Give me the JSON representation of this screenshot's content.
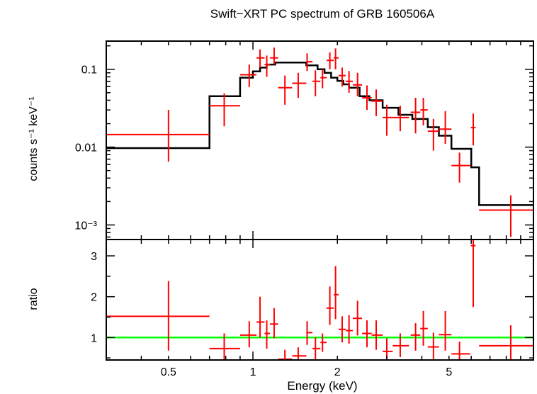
{
  "chart_data": {
    "type": "scatter",
    "title": "Swift−XRT PC spectrum of GRB 160506A",
    "xlabel": "Energy (keV)",
    "x_scale": "log",
    "xlim": [
      0.3,
      10
    ],
    "x_ticks": [
      {
        "value": 0.5,
        "label": "0.5"
      },
      {
        "value": 1,
        "label": "1"
      },
      {
        "value": 2,
        "label": "2"
      },
      {
        "value": 5,
        "label": "5"
      }
    ],
    "colors": {
      "data": "#ff0000",
      "model": "#000000",
      "unity": "#00ff00"
    },
    "panels": [
      {
        "name": "spectrum",
        "ylabel": "counts s⁻¹ keV⁻¹",
        "y_scale": "log",
        "ylim": [
          0.00065,
          0.23
        ],
        "y_ticks": [
          {
            "value": 0.1,
            "label": "0.1"
          },
          {
            "value": 0.01,
            "label": "0.01"
          },
          {
            "value": 0.001,
            "label": "10⁻³"
          }
        ],
        "data": [
          {
            "x": 0.5,
            "xlo": 0.3,
            "xhi": 0.7,
            "y": 0.0145,
            "ylo": 0.0065,
            "yhi": 0.03
          },
          {
            "x": 0.79,
            "xlo": 0.7,
            "xhi": 0.9,
            "y": 0.034,
            "ylo": 0.0185,
            "yhi": 0.049
          },
          {
            "x": 0.97,
            "xlo": 0.9,
            "xhi": 1.03,
            "y": 0.085,
            "ylo": 0.059,
            "yhi": 0.115
          },
          {
            "x": 1.06,
            "xlo": 1.03,
            "xhi": 1.1,
            "y": 0.14,
            "ylo": 0.105,
            "yhi": 0.18
          },
          {
            "x": 1.12,
            "xlo": 1.1,
            "xhi": 1.15,
            "y": 0.115,
            "ylo": 0.08,
            "yhi": 0.15
          },
          {
            "x": 1.19,
            "xlo": 1.15,
            "xhi": 1.23,
            "y": 0.14,
            "ylo": 0.115,
            "yhi": 0.19
          },
          {
            "x": 1.3,
            "xlo": 1.23,
            "xhi": 1.38,
            "y": 0.058,
            "ylo": 0.035,
            "yhi": 0.083
          },
          {
            "x": 1.45,
            "xlo": 1.38,
            "xhi": 1.55,
            "y": 0.066,
            "ylo": 0.043,
            "yhi": 0.09
          },
          {
            "x": 1.56,
            "xlo": 1.55,
            "xhi": 1.63,
            "y": 0.125,
            "ylo": 0.095,
            "yhi": 0.16
          },
          {
            "x": 1.67,
            "xlo": 1.63,
            "xhi": 1.74,
            "y": 0.07,
            "ylo": 0.045,
            "yhi": 0.097
          },
          {
            "x": 1.77,
            "xlo": 1.74,
            "xhi": 1.83,
            "y": 0.078,
            "ylo": 0.057,
            "yhi": 0.1
          },
          {
            "x": 1.88,
            "xlo": 1.83,
            "xhi": 1.94,
            "y": 0.13,
            "ylo": 0.1,
            "yhi": 0.165
          },
          {
            "x": 1.97,
            "xlo": 1.94,
            "xhi": 2.02,
            "y": 0.14,
            "ylo": 0.1,
            "yhi": 0.185
          },
          {
            "x": 2.08,
            "xlo": 2.02,
            "xhi": 2.14,
            "y": 0.083,
            "ylo": 0.06,
            "yhi": 0.105
          },
          {
            "x": 2.2,
            "xlo": 2.14,
            "xhi": 2.27,
            "y": 0.07,
            "ylo": 0.05,
            "yhi": 0.095
          },
          {
            "x": 2.36,
            "xlo": 2.27,
            "xhi": 2.45,
            "y": 0.063,
            "ylo": 0.045,
            "yhi": 0.09
          },
          {
            "x": 2.55,
            "xlo": 2.45,
            "xhi": 2.65,
            "y": 0.043,
            "ylo": 0.03,
            "yhi": 0.062
          },
          {
            "x": 2.75,
            "xlo": 2.65,
            "xhi": 2.9,
            "y": 0.039,
            "ylo": 0.025,
            "yhi": 0.055
          },
          {
            "x": 3.0,
            "xlo": 2.9,
            "xhi": 3.15,
            "y": 0.024,
            "ylo": 0.014,
            "yhi": 0.035
          },
          {
            "x": 3.35,
            "xlo": 3.15,
            "xhi": 3.6,
            "y": 0.024,
            "ylo": 0.016,
            "yhi": 0.034
          },
          {
            "x": 3.8,
            "xlo": 3.65,
            "xhi": 3.95,
            "y": 0.028,
            "ylo": 0.015,
            "yhi": 0.043
          },
          {
            "x": 4.05,
            "xlo": 3.95,
            "xhi": 4.2,
            "y": 0.03,
            "ylo": 0.019,
            "yhi": 0.043
          },
          {
            "x": 4.4,
            "xlo": 4.2,
            "xhi": 4.6,
            "y": 0.016,
            "ylo": 0.009,
            "yhi": 0.023
          },
          {
            "x": 4.85,
            "xlo": 4.6,
            "xhi": 5.1,
            "y": 0.017,
            "ylo": 0.011,
            "yhi": 0.029
          },
          {
            "x": 5.45,
            "xlo": 5.1,
            "xhi": 5.95,
            "y": 0.0058,
            "ylo": 0.0035,
            "yhi": 0.0085
          },
          {
            "x": 6.1,
            "xlo": 5.98,
            "xhi": 6.22,
            "y": 0.0178,
            "ylo": 0.0105,
            "yhi": 0.027
          },
          {
            "x": 8.3,
            "xlo": 6.4,
            "xhi": 10.0,
            "y": 0.00155,
            "ylo": 0.0007,
            "yhi": 0.0024
          }
        ],
        "model_steps": [
          {
            "xlo": 0.3,
            "xhi": 0.7,
            "y": 0.0097
          },
          {
            "xlo": 0.7,
            "xhi": 0.9,
            "y": 0.045
          },
          {
            "xlo": 0.9,
            "xhi": 1.0,
            "y": 0.078
          },
          {
            "xlo": 1.0,
            "xhi": 1.06,
            "y": 0.094
          },
          {
            "xlo": 1.06,
            "xhi": 1.12,
            "y": 0.105
          },
          {
            "xlo": 1.12,
            "xhi": 1.2,
            "y": 0.115
          },
          {
            "xlo": 1.2,
            "xhi": 1.55,
            "y": 0.122
          },
          {
            "xlo": 1.55,
            "xhi": 1.7,
            "y": 0.112
          },
          {
            "xlo": 1.7,
            "xhi": 1.8,
            "y": 0.1
          },
          {
            "xlo": 1.8,
            "xhi": 1.9,
            "y": 0.09
          },
          {
            "xlo": 1.9,
            "xhi": 2.0,
            "y": 0.078
          },
          {
            "xlo": 2.0,
            "xhi": 2.1,
            "y": 0.071
          },
          {
            "xlo": 2.1,
            "xhi": 2.2,
            "y": 0.064
          },
          {
            "xlo": 2.2,
            "xhi": 2.4,
            "y": 0.058
          },
          {
            "xlo": 2.4,
            "xhi": 2.6,
            "y": 0.045
          },
          {
            "xlo": 2.6,
            "xhi": 2.9,
            "y": 0.04
          },
          {
            "xlo": 2.9,
            "xhi": 3.3,
            "y": 0.032
          },
          {
            "xlo": 3.3,
            "xhi": 3.7,
            "y": 0.026
          },
          {
            "xlo": 3.7,
            "xhi": 4.2,
            "y": 0.023
          },
          {
            "xlo": 4.2,
            "xhi": 4.6,
            "y": 0.018
          },
          {
            "xlo": 4.6,
            "xhi": 5.1,
            "y": 0.014
          },
          {
            "xlo": 5.1,
            "xhi": 6.0,
            "y": 0.0095
          },
          {
            "xlo": 6.0,
            "xhi": 6.4,
            "y": 0.0055
          },
          {
            "xlo": 6.4,
            "xhi": 10.0,
            "y": 0.0018
          }
        ]
      },
      {
        "name": "ratio",
        "ylabel": "ratio",
        "y_scale": "linear",
        "ylim": [
          0.45,
          3.4
        ],
        "y_ticks": [
          {
            "value": 1,
            "label": "1"
          },
          {
            "value": 2,
            "label": "2"
          },
          {
            "value": 3,
            "label": "3"
          }
        ],
        "unity_line": 1,
        "data": [
          {
            "x": 0.5,
            "xlo": 0.3,
            "xhi": 0.7,
            "y": 1.52,
            "ylo": 0.68,
            "yhi": 2.38
          },
          {
            "x": 0.79,
            "xlo": 0.7,
            "xhi": 0.9,
            "y": 0.73,
            "ylo": 0.43,
            "yhi": 1.1
          },
          {
            "x": 0.97,
            "xlo": 0.9,
            "xhi": 1.03,
            "y": 1.06,
            "ylo": 0.76,
            "yhi": 1.4
          },
          {
            "x": 1.06,
            "xlo": 1.03,
            "xhi": 1.1,
            "y": 1.38,
            "ylo": 1.0,
            "yhi": 2.0
          },
          {
            "x": 1.12,
            "xlo": 1.1,
            "xhi": 1.15,
            "y": 1.1,
            "ylo": 0.73,
            "yhi": 1.42
          },
          {
            "x": 1.19,
            "xlo": 1.15,
            "xhi": 1.23,
            "y": 1.33,
            "ylo": 0.98,
            "yhi": 1.72
          },
          {
            "x": 1.3,
            "xlo": 1.23,
            "xhi": 1.38,
            "y": 0.47,
            "ylo": 0.43,
            "yhi": 0.7
          },
          {
            "x": 1.45,
            "xlo": 1.38,
            "xhi": 1.55,
            "y": 0.55,
            "ylo": 0.43,
            "yhi": 0.76
          },
          {
            "x": 1.56,
            "xlo": 1.55,
            "xhi": 1.63,
            "y": 1.12,
            "ylo": 0.82,
            "yhi": 1.4
          },
          {
            "x": 1.67,
            "xlo": 1.63,
            "xhi": 1.74,
            "y": 0.73,
            "ylo": 0.43,
            "yhi": 1.0
          },
          {
            "x": 1.77,
            "xlo": 1.74,
            "xhi": 1.83,
            "y": 0.88,
            "ylo": 0.65,
            "yhi": 1.1
          },
          {
            "x": 1.88,
            "xlo": 1.83,
            "xhi": 1.94,
            "y": 1.72,
            "ylo": 1.31,
            "yhi": 2.25
          },
          {
            "x": 1.97,
            "xlo": 1.94,
            "xhi": 2.02,
            "y": 2.05,
            "ylo": 1.45,
            "yhi": 2.75
          },
          {
            "x": 2.08,
            "xlo": 2.02,
            "xhi": 2.14,
            "y": 1.2,
            "ylo": 0.88,
            "yhi": 1.52
          },
          {
            "x": 2.2,
            "xlo": 2.14,
            "xhi": 2.27,
            "y": 1.17,
            "ylo": 0.85,
            "yhi": 1.55
          },
          {
            "x": 2.36,
            "xlo": 2.27,
            "xhi": 2.45,
            "y": 1.47,
            "ylo": 1.05,
            "yhi": 1.9
          },
          {
            "x": 2.55,
            "xlo": 2.45,
            "xhi": 2.65,
            "y": 1.1,
            "ylo": 0.76,
            "yhi": 1.42
          },
          {
            "x": 2.75,
            "xlo": 2.65,
            "xhi": 2.9,
            "y": 1.06,
            "ylo": 0.7,
            "yhi": 1.42
          },
          {
            "x": 3.0,
            "xlo": 2.9,
            "xhi": 3.15,
            "y": 0.66,
            "ylo": 0.43,
            "yhi": 0.98
          },
          {
            "x": 3.35,
            "xlo": 3.15,
            "xhi": 3.6,
            "y": 0.8,
            "ylo": 0.52,
            "yhi": 1.1
          },
          {
            "x": 3.8,
            "xlo": 3.65,
            "xhi": 3.95,
            "y": 1.06,
            "ylo": 0.68,
            "yhi": 1.35
          },
          {
            "x": 4.05,
            "xlo": 3.95,
            "xhi": 4.2,
            "y": 1.22,
            "ylo": 0.8,
            "yhi": 1.65
          },
          {
            "x": 4.4,
            "xlo": 4.2,
            "xhi": 4.6,
            "y": 0.77,
            "ylo": 0.47,
            "yhi": 1.12
          },
          {
            "x": 4.85,
            "xlo": 4.6,
            "xhi": 5.1,
            "y": 1.07,
            "ylo": 0.68,
            "yhi": 1.65
          },
          {
            "x": 5.45,
            "xlo": 5.1,
            "xhi": 5.95,
            "y": 0.6,
            "ylo": 0.43,
            "yhi": 0.9
          },
          {
            "x": 6.1,
            "xlo": 5.98,
            "xhi": 6.22,
            "y": 3.25,
            "ylo": 1.75,
            "yhi": 3.4
          },
          {
            "x": 8.3,
            "xlo": 6.4,
            "xhi": 10.0,
            "y": 0.8,
            "ylo": 0.43,
            "yhi": 1.3
          }
        ]
      }
    ]
  }
}
